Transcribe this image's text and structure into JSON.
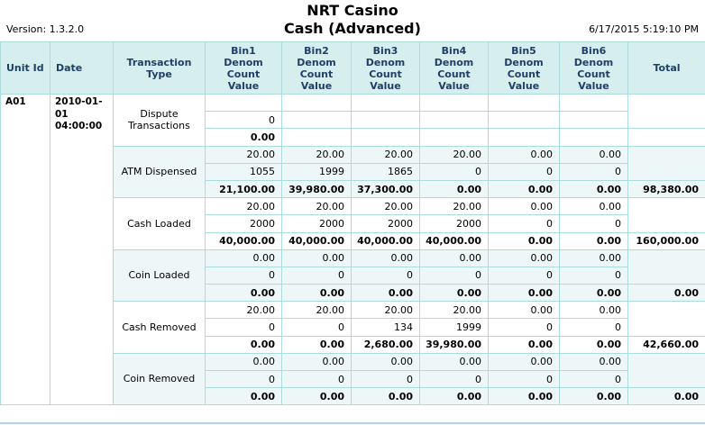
{
  "header": {
    "title_line1": "NRT Casino",
    "title_line2": "Cash (Advanced)",
    "version_label": "Version:",
    "version_value": "1.3.2.0",
    "timestamp": "6/17/2015 5:19:10 PM"
  },
  "table": {
    "headers": {
      "unit_id": "Unit Id",
      "date": "Date",
      "transaction_type": "Transaction Type",
      "bins": [
        "Bin1",
        "Bin2",
        "Bin3",
        "Bin4",
        "Bin5",
        "Bin6"
      ],
      "bin_sub": [
        "Denom",
        "Count",
        "Value"
      ],
      "total": "Total"
    },
    "unit_id": "A01",
    "date": "2010-01-01 04:00:00",
    "groups": [
      {
        "type": "Dispute Transactions",
        "denom": [
          "",
          "",
          "",
          "",
          "",
          ""
        ],
        "count": [
          "0",
          "",
          "",
          "",
          "",
          ""
        ],
        "value": [
          "0.00",
          "",
          "",
          "",
          "",
          ""
        ],
        "total": ""
      },
      {
        "type": "ATM Dispensed",
        "denom": [
          "20.00",
          "20.00",
          "20.00",
          "20.00",
          "0.00",
          "0.00"
        ],
        "count": [
          "1055",
          "1999",
          "1865",
          "0",
          "0",
          "0"
        ],
        "value": [
          "21,100.00",
          "39,980.00",
          "37,300.00",
          "0.00",
          "0.00",
          "0.00"
        ],
        "total": "98,380.00"
      },
      {
        "type": "Cash Loaded",
        "denom": [
          "20.00",
          "20.00",
          "20.00",
          "20.00",
          "0.00",
          "0.00"
        ],
        "count": [
          "2000",
          "2000",
          "2000",
          "2000",
          "0",
          "0"
        ],
        "value": [
          "40,000.00",
          "40,000.00",
          "40,000.00",
          "40,000.00",
          "0.00",
          "0.00"
        ],
        "total": "160,000.00"
      },
      {
        "type": "Coin Loaded",
        "denom": [
          "0.00",
          "0.00",
          "0.00",
          "0.00",
          "0.00",
          "0.00"
        ],
        "count": [
          "0",
          "0",
          "0",
          "0",
          "0",
          "0"
        ],
        "value": [
          "0.00",
          "0.00",
          "0.00",
          "0.00",
          "0.00",
          "0.00"
        ],
        "total": "0.00"
      },
      {
        "type": "Cash Removed",
        "denom": [
          "20.00",
          "20.00",
          "20.00",
          "20.00",
          "0.00",
          "0.00"
        ],
        "count": [
          "0",
          "0",
          "134",
          "1999",
          "0",
          "0"
        ],
        "value": [
          "0.00",
          "0.00",
          "2,680.00",
          "39,980.00",
          "0.00",
          "0.00"
        ],
        "total": "42,660.00"
      },
      {
        "type": "Coin Removed",
        "denom": [
          "0.00",
          "0.00",
          "0.00",
          "0.00",
          "0.00",
          "0.00"
        ],
        "count": [
          "0",
          "0",
          "0",
          "0",
          "0",
          "0"
        ],
        "value": [
          "0.00",
          "0.00",
          "0.00",
          "0.00",
          "0.00",
          "0.00"
        ],
        "total": "0.00"
      }
    ]
  },
  "colors": {
    "header_bg": "#d7eeee",
    "header_text": "#1f3f68",
    "grid_border": "#abdbdb",
    "band_tint": "#eef7f8",
    "page_bottom_line": "#b3d0ee"
  }
}
